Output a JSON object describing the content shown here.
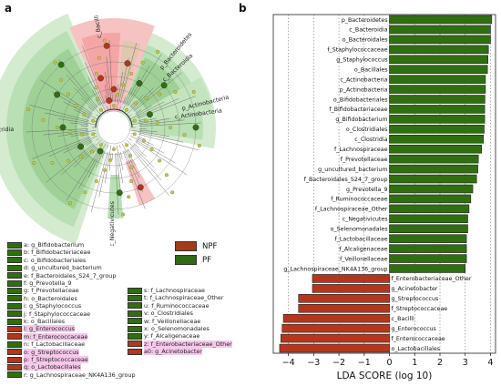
{
  "panel_a": {
    "letter": "a",
    "ring_labels": [
      {
        "text": "c_Bacilli"
      },
      {
        "text": "p_Bacteroidetes"
      },
      {
        "text": "c_Bacteroidia"
      },
      {
        "text": "p_Actinobacteria"
      },
      {
        "text": "c_Actinobacteria"
      },
      {
        "text": "c_Clostridia"
      },
      {
        "text": "c_Negativicutes"
      }
    ],
    "legend_col1": [
      {
        "key": "a",
        "text": "a: g_Bifidobacterium",
        "group": "PF"
      },
      {
        "key": "b",
        "text": "b: f_Bifidobacteriaceae",
        "group": "PF"
      },
      {
        "key": "c",
        "text": "c: o_Bifidobacteriales",
        "group": "PF"
      },
      {
        "key": "d",
        "text": "d: g_uncultured_bacterium",
        "group": "PF"
      },
      {
        "key": "e",
        "text": "e: f_Bacteroidales_S24_7_group",
        "group": "PF"
      },
      {
        "key": "f",
        "text": "f: g_Prevotella_9",
        "group": "PF"
      },
      {
        "key": "g",
        "text": "g: f_Prevotellaceae",
        "group": "PF"
      },
      {
        "key": "h",
        "text": "h: o_Bacteroidales",
        "group": "PF"
      },
      {
        "key": "i",
        "text": "i: g_Staphylococcus",
        "group": "PF"
      },
      {
        "key": "j",
        "text": "j: f_Staphylococcaceae",
        "group": "PF"
      },
      {
        "key": "k",
        "text": "k: o_Bacillales",
        "group": "PF"
      },
      {
        "key": "l",
        "text": "l: g_Enterococcus",
        "group": "NPF"
      },
      {
        "key": "m",
        "text": "m: f_Enterococcaceae",
        "group": "NPF"
      },
      {
        "key": "n",
        "text": "n: f_Lactobacillaceae",
        "group": "PF"
      },
      {
        "key": "o",
        "text": "o: g_Streptococcus",
        "group": "NPF"
      },
      {
        "key": "p",
        "text": "p: f_Streptococcaceae",
        "group": "NPF"
      },
      {
        "key": "q",
        "text": "q: o_Lactobacillales",
        "group": "NPF"
      },
      {
        "key": "r",
        "text": "r: g_Lachnospiraceae_NK4A136_group",
        "group": "PF"
      }
    ],
    "legend_col2": [
      {
        "key": "s",
        "text": "s: f_Lachnospiraceae",
        "group": "PF"
      },
      {
        "key": "t",
        "text": "t: f_Lachnospiraceae_Other",
        "group": "PF"
      },
      {
        "key": "u",
        "text": "u: f_Ruminococcaceae",
        "group": "PF"
      },
      {
        "key": "v",
        "text": "v: o_Clostridiales",
        "group": "PF"
      },
      {
        "key": "w",
        "text": "w: f_Veillonellaceae",
        "group": "PF"
      },
      {
        "key": "x",
        "text": "x: o_Selenomonadales",
        "group": "PF"
      },
      {
        "key": "y",
        "text": "y: f_Alcaligenaceae",
        "group": "PF"
      },
      {
        "key": "z",
        "text": "z: f_Enterobacteriaceae_Other",
        "group": "NPF"
      },
      {
        "key": "a0",
        "text": "a0: g_Acinetobacter",
        "group": "NPF"
      }
    ],
    "group_legend": [
      {
        "name": "NPF",
        "color": "#a23a1c"
      },
      {
        "name": "PF",
        "color": "#2e6b12"
      }
    ]
  },
  "colors": {
    "npf": "#b5361c",
    "pf": "#2f6f10",
    "npf_hl": "#f7b4b4",
    "pf_hl": "#b9dfb4",
    "node": "#c8c832",
    "npf_label_bg": "#f7c8ec",
    "pf_label_bg": "#ffffff"
  },
  "chart_data": {
    "type": "bar",
    "letter": "b",
    "orientation": "horizontal",
    "xlabel": "LDA SCORE (log 10)",
    "xlim": [
      -4.6,
      4.2
    ],
    "xticks": [
      -4,
      -3,
      -2,
      -1,
      0,
      1,
      2,
      3,
      4
    ],
    "xtick_labels": [
      "−4",
      "−3",
      "−2",
      "−1",
      "0",
      "1",
      "2",
      "3",
      "4"
    ],
    "grid": "vertical dashed",
    "series": [
      {
        "name": "PF",
        "color": "#2f6f10",
        "categories": [
          "p_Bacteroidetes",
          "c_Bacteroidia",
          "o_Bacteroidales",
          "f_Staphylococcaceae",
          "g_Staphylococcus",
          "o_Bacillales",
          "c_Actinobacteria",
          "p_Actinobacteria",
          "o_Bifidobacteriales",
          "f_Bifidobacteriaceae",
          "g_Bifidobacterium",
          "o_Clostridiales",
          "c_Clostridia",
          "f_Lachnospiraceae",
          "f_Prevotellaceae",
          "g_uncultured_bacterium",
          "f_Bacteroidales_S24_7_group",
          "g_Prevotella_9",
          "f_Ruminococcaceae",
          "f_Lachnospiraceae_Other",
          "c_Negativicutes",
          "o_Selenomonadales",
          "f_Lactobacillaceae",
          "f_Alcaligenaceae",
          "f_Veillonellaceae",
          "g_Lachnospiraceae_NK4A136_group"
        ],
        "values": [
          4.05,
          4.0,
          4.0,
          3.92,
          3.9,
          3.88,
          3.8,
          3.8,
          3.78,
          3.77,
          3.77,
          3.75,
          3.72,
          3.65,
          3.52,
          3.5,
          3.45,
          3.3,
          3.22,
          3.15,
          3.1,
          3.1,
          3.05,
          3.05,
          3.05,
          3.0
        ]
      },
      {
        "name": "NPF",
        "color": "#b5361c",
        "categories": [
          "f_Enterobacteriaceae_Other",
          "g_Acinetobacter",
          "g_Streptococcus",
          "f_Streptococcaceae",
          "c_Bacilli",
          "g_Enterococcus",
          "f_Enterococcaceae",
          "o_Lactobacillales"
        ],
        "values": [
          -3.05,
          -3.05,
          -3.6,
          -3.6,
          -4.2,
          -4.25,
          -4.3,
          -4.35
        ]
      }
    ]
  }
}
